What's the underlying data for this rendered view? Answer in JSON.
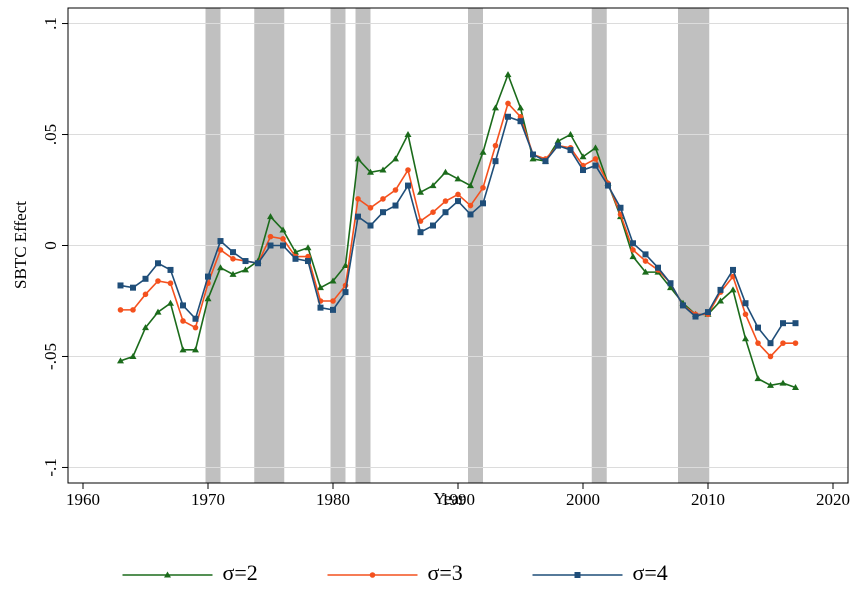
{
  "chart_data": {
    "type": "line",
    "x_label": "Year",
    "y_label": "SBTC Effect",
    "x": [
      1963,
      1964,
      1965,
      1966,
      1967,
      1968,
      1969,
      1970,
      1971,
      1972,
      1973,
      1974,
      1975,
      1976,
      1977,
      1978,
      1979,
      1980,
      1981,
      1982,
      1983,
      1984,
      1985,
      1986,
      1987,
      1988,
      1989,
      1990,
      1991,
      1992,
      1993,
      1994,
      1995,
      1996,
      1997,
      1998,
      1999,
      2000,
      2001,
      2002,
      2003,
      2004,
      2005,
      2006,
      2007,
      2008,
      2009,
      2010,
      2011,
      2012,
      2013,
      2014,
      2015,
      2016,
      2017
    ],
    "series": [
      {
        "name": "σ=2",
        "color": "#1b6b1b",
        "marker": "triangle",
        "values": [
          -0.052,
          -0.05,
          -0.037,
          -0.03,
          -0.026,
          -0.047,
          -0.047,
          -0.024,
          -0.01,
          -0.013,
          -0.011,
          -0.007,
          0.013,
          0.007,
          -0.003,
          -0.001,
          -0.019,
          -0.016,
          -0.009,
          0.039,
          0.033,
          0.034,
          0.039,
          0.05,
          0.024,
          0.027,
          0.033,
          0.03,
          0.027,
          0.042,
          0.062,
          0.077,
          0.062,
          0.039,
          0.038,
          0.047,
          0.05,
          0.04,
          0.044,
          0.028,
          0.013,
          -0.005,
          -0.012,
          -0.012,
          -0.019,
          -0.026,
          -0.031,
          -0.031,
          -0.025,
          -0.02,
          -0.042,
          -0.06,
          -0.063,
          -0.062,
          -0.064
        ]
      },
      {
        "name": "σ=3",
        "color": "#f4511e",
        "marker": "circle",
        "values": [
          -0.029,
          -0.029,
          -0.022,
          -0.016,
          -0.017,
          -0.034,
          -0.037,
          -0.017,
          -0.002,
          -0.006,
          -0.007,
          -0.008,
          0.004,
          0.003,
          -0.005,
          -0.005,
          -0.025,
          -0.025,
          -0.018,
          0.021,
          0.017,
          0.021,
          0.025,
          0.034,
          0.011,
          0.015,
          0.02,
          0.023,
          0.018,
          0.026,
          0.045,
          0.064,
          0.058,
          0.041,
          0.039,
          0.045,
          0.044,
          0.036,
          0.039,
          0.028,
          0.014,
          -0.002,
          -0.007,
          -0.011,
          -0.017,
          -0.027,
          -0.031,
          -0.031,
          -0.021,
          -0.014,
          -0.031,
          -0.044,
          -0.05,
          -0.044,
          -0.044
        ]
      },
      {
        "name": "σ=4",
        "color": "#1f4e79",
        "marker": "square",
        "values": [
          -0.018,
          -0.019,
          -0.015,
          -0.008,
          -0.011,
          -0.027,
          -0.033,
          -0.014,
          0.002,
          -0.003,
          -0.007,
          -0.008,
          0.0,
          0.0,
          -0.006,
          -0.007,
          -0.028,
          -0.029,
          -0.021,
          0.013,
          0.009,
          0.015,
          0.018,
          0.027,
          0.006,
          0.009,
          0.015,
          0.02,
          0.014,
          0.019,
          0.038,
          0.058,
          0.056,
          0.041,
          0.038,
          0.045,
          0.043,
          0.034,
          0.036,
          0.027,
          0.017,
          0.001,
          -0.004,
          -0.01,
          -0.017,
          -0.027,
          -0.032,
          -0.03,
          -0.02,
          -0.011,
          -0.026,
          -0.037,
          -0.044,
          -0.035,
          -0.035
        ]
      }
    ],
    "shaded_periods": [
      {
        "start": 1969.8,
        "end": 1971.0
      },
      {
        "start": 1973.7,
        "end": 1976.1
      },
      {
        "start": 1979.8,
        "end": 1981.0
      },
      {
        "start": 1981.8,
        "end": 1983.0
      },
      {
        "start": 1990.8,
        "end": 1992.0
      },
      {
        "start": 2000.7,
        "end": 2001.9
      },
      {
        "start": 2007.6,
        "end": 2010.1
      }
    ],
    "shade_color": "#c0c0c0",
    "xlim": [
      1958.8,
      2021.2
    ],
    "ylim": [
      -0.107,
      0.107
    ],
    "xticks": [
      1960,
      1970,
      1980,
      1990,
      2000,
      2010,
      2020
    ],
    "yticks": [
      {
        "value": -0.1,
        "label": "-.1"
      },
      {
        "value": -0.05,
        "label": "-.05"
      },
      0,
      {
        "value": 0.05,
        "label": ".05"
      },
      {
        "value": 0.1,
        "label": ".1"
      }
    ],
    "grid": true,
    "legend": "bottom"
  }
}
